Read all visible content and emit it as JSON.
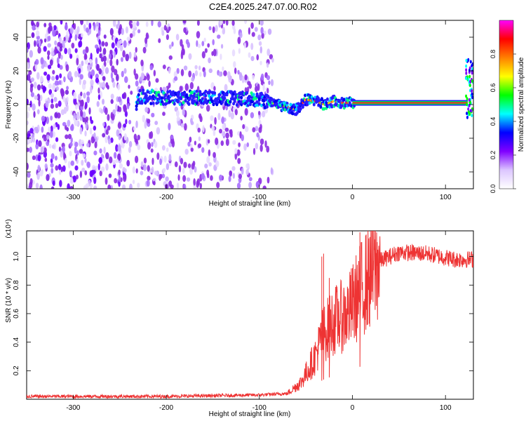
{
  "title": "C2E4.2025.247.07.00.R02",
  "chart_data": [
    {
      "type": "heatmap",
      "xlabel": "Height of straight line (km)",
      "ylabel": "Frequency (Hz)",
      "xlim": [
        -350,
        130
      ],
      "ylim": [
        -50,
        50
      ],
      "xticks": [
        -300,
        -200,
        -100,
        0,
        100
      ],
      "yticks": [
        -40,
        -20,
        0,
        20,
        40
      ],
      "colorbar": {
        "label": "Normalized spectral amplitude",
        "range": [
          0.0,
          1.0
        ],
        "ticks": [
          "0.0",
          "0.2",
          "0.4",
          "0.6",
          "0.8"
        ],
        "colors": [
          "#ffffff",
          "#dcc6ff",
          "#8000ff",
          "#0000ff",
          "#00ffff",
          "#00ff00",
          "#ffff00",
          "#ff8000",
          "#ff0000",
          "#ff00ff"
        ]
      },
      "ridge": [
        {
          "x": -230,
          "y": 5
        },
        {
          "x": -200,
          "y": 4
        },
        {
          "x": -150,
          "y": 4
        },
        {
          "x": -100,
          "y": 3
        },
        {
          "x": -80,
          "y": 0
        },
        {
          "x": -60,
          "y": -3
        },
        {
          "x": -50,
          "y": 3
        },
        {
          "x": -40,
          "y": 2
        },
        {
          "x": -30,
          "y": 0
        },
        {
          "x": -20,
          "y": 2
        },
        {
          "x": -10,
          "y": 1
        },
        {
          "x": 0,
          "y": 1
        },
        {
          "x": 125,
          "y": 1
        }
      ]
    },
    {
      "type": "line",
      "xlabel": "Height of straight line (km)",
      "ylabel": "SNR (10 * v/v)",
      "y_multiplier": "(x10⁴)",
      "xlim": [
        -350,
        130
      ],
      "ylim": [
        0,
        1.18
      ],
      "xticks": [
        -300,
        -200,
        -100,
        0,
        100
      ],
      "yticks": [
        "0.2",
        "0.4",
        "0.6",
        "0.8",
        "1.0"
      ],
      "color": "#ee3333",
      "envelope": [
        {
          "x": -350,
          "y": 0.02
        },
        {
          "x": -200,
          "y": 0.02
        },
        {
          "x": -100,
          "y": 0.03
        },
        {
          "x": -70,
          "y": 0.04
        },
        {
          "x": -55,
          "y": 0.12
        },
        {
          "x": -40,
          "y": 0.3
        },
        {
          "x": -32,
          "y": 0.45
        },
        {
          "x": -20,
          "y": 0.55
        },
        {
          "x": -5,
          "y": 0.6
        },
        {
          "x": 10,
          "y": 0.78
        },
        {
          "x": 30,
          "y": 0.97
        },
        {
          "x": 50,
          "y": 1.03
        },
        {
          "x": 80,
          "y": 1.02
        },
        {
          "x": 110,
          "y": 0.98
        },
        {
          "x": 130,
          "y": 0.98
        }
      ],
      "spikes": [
        {
          "x": -33,
          "y": 1.0
        },
        {
          "x": -31,
          "y": 1.02
        },
        {
          "x": -25,
          "y": 0.85
        },
        {
          "x": 8,
          "y": 1.17
        }
      ]
    }
  ]
}
